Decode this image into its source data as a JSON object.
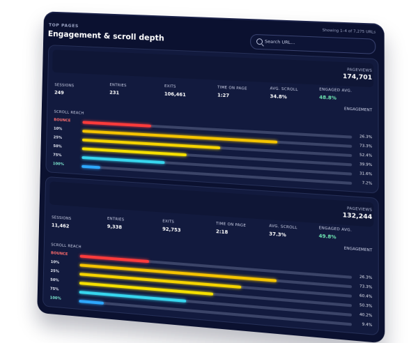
{
  "header": {
    "eyebrow": "TOP PAGES",
    "title": "Engagement & scroll depth",
    "showing": "Showing 1–4 of 7,275 URLs",
    "search_placeholder": "Search URL..."
  },
  "labels": {
    "pageviews": "PAGEVIEWS",
    "sessions": "SESSIONS",
    "entries": "ENTRIES",
    "exits": "EXITS",
    "time_on_page": "TIME ON PAGE",
    "avg_scroll": "AVG. SCROLL",
    "engaged_avg": "ENGAGED AVG.",
    "engagement": "ENGAGEMENT",
    "scroll_reach": "SCROLL REACH"
  },
  "panels": [
    {
      "pageviews": "174,701",
      "sessions": "249",
      "entries": "231",
      "exits": "106,461",
      "time_on_page": "1:27",
      "avg_scroll": "34.8%",
      "engaged_avg": "48.8%",
      "rows": [
        {
          "label": "BOUNCE",
          "value": 26.3,
          "pct": "26.3%",
          "color": "#ff3b3b"
        },
        {
          "label": "10%",
          "value": 73.3,
          "pct": "73.3%",
          "color": "#f5c400"
        },
        {
          "label": "25%",
          "value": 52.4,
          "pct": "52.4%",
          "color": "#f5d400"
        },
        {
          "label": "50%",
          "value": 39.9,
          "pct": "39.9%",
          "color": "#f5e000"
        },
        {
          "label": "75%",
          "value": 31.6,
          "pct": "31.6%",
          "color": "#37d6ee"
        },
        {
          "label": "100%",
          "value": 7.2,
          "pct": "7.2%",
          "color": "#2ea8ff"
        }
      ]
    },
    {
      "pageviews": "132,244",
      "sessions": "11,462",
      "entries": "9,338",
      "exits": "92,753",
      "time_on_page": "2:18",
      "avg_scroll": "37.3%",
      "engaged_avg": "49.8%",
      "rows": [
        {
          "label": "BOUNCE",
          "value": 26.3,
          "pct": "26.3%",
          "color": "#ff3b3b"
        },
        {
          "label": "10%",
          "value": 73.3,
          "pct": "73.3%",
          "color": "#f5c400"
        },
        {
          "label": "25%",
          "value": 60.4,
          "pct": "60.4%",
          "color": "#f5d400"
        },
        {
          "label": "50%",
          "value": 50.3,
          "pct": "50.3%",
          "color": "#f5e000"
        },
        {
          "label": "75%",
          "value": 40.2,
          "pct": "40.2%",
          "color": "#37d6ee"
        },
        {
          "label": "100%",
          "value": 9.4,
          "pct": "9.4%",
          "color": "#2ea8ff"
        }
      ]
    }
  ]
}
